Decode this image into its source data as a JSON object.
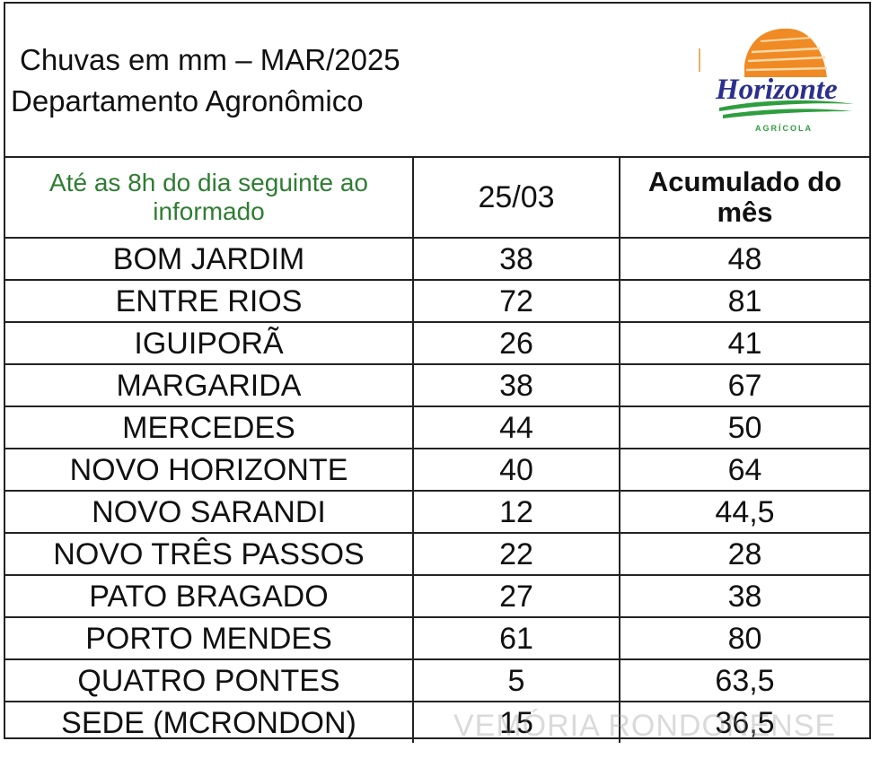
{
  "header": {
    "title_line1": "Chuvas em mm – MAR/2025",
    "title_line2": "Departamento Agronômico",
    "logo": {
      "name": "Horizonte",
      "sub": "AGRÍCOLA",
      "colors": {
        "sun": "#f08a24",
        "text": "#2b2f8f",
        "swoosh": "#2e9e3e"
      }
    }
  },
  "table": {
    "col1_header": "Até as 8h do dia seguinte ao informado",
    "col2_header": "25/03",
    "col3_header_line1": "Acumulado do",
    "col3_header_line2": "mês",
    "rows": [
      {
        "place": "BOM JARDIM",
        "day": "38",
        "month": "48"
      },
      {
        "place": "ENTRE RIOS",
        "day": "72",
        "month": "81"
      },
      {
        "place": "IGUIPORÃ",
        "day": "26",
        "month": "41"
      },
      {
        "place": "MARGARIDA",
        "day": "38",
        "month": "67"
      },
      {
        "place": "MERCEDES",
        "day": "44",
        "month": "50"
      },
      {
        "place": "NOVO HORIZONTE",
        "day": "40",
        "month": "64"
      },
      {
        "place": "NOVO SARANDI",
        "day": "12",
        "month": "44,5"
      },
      {
        "place": "NOVO TRÊS PASSOS",
        "day": "22",
        "month": "28"
      },
      {
        "place": "PATO BRAGADO",
        "day": "27",
        "month": "38"
      },
      {
        "place": "PORTO MENDES",
        "day": "61",
        "month": "80"
      },
      {
        "place": "QUATRO PONTES",
        "day": "5",
        "month": "63,5"
      },
      {
        "place": "SEDE (MCRONDON)",
        "day": "15",
        "month": "36,5"
      }
    ]
  },
  "watermark": "VEMÓRIA RONDONENSE"
}
